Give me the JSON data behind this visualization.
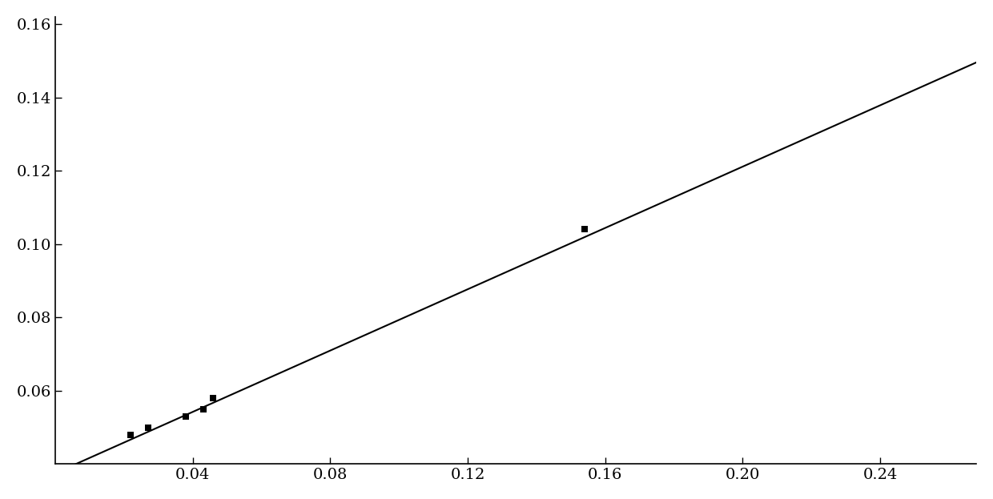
{
  "scatter_points": [
    [
      0.022,
      0.048
    ],
    [
      0.027,
      0.05
    ],
    [
      0.038,
      0.053
    ],
    [
      0.043,
      0.055
    ],
    [
      0.046,
      0.058
    ],
    [
      0.154,
      0.104
    ]
  ],
  "line_slope": 0.418,
  "line_intercept": 0.0375,
  "line_x_start": 0.0,
  "line_x_end": 0.268,
  "xlim": [
    0.0,
    0.268
  ],
  "ylim": [
    0.04,
    0.162
  ],
  "xticks": [
    0.04,
    0.08,
    0.12,
    0.16,
    0.2,
    0.24
  ],
  "yticks": [
    0.06,
    0.08,
    0.1,
    0.12,
    0.14,
    0.16
  ],
  "background_color": "#ffffff",
  "line_color": "#000000",
  "marker_color": "#000000",
  "marker_size": 6,
  "line_width": 1.5
}
